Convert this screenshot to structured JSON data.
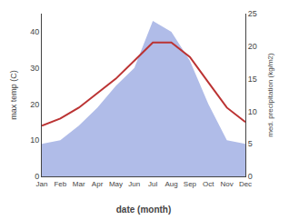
{
  "chart_data": {
    "type": "line",
    "categories": [
      "Jan",
      "Feb",
      "Mar",
      "Apr",
      "May",
      "Jun",
      "Jul",
      "Aug",
      "Sep",
      "Oct",
      "Nov",
      "Dec"
    ],
    "series": [
      {
        "type": "area",
        "color": "#b0bce8",
        "values": [
          9,
          10,
          14,
          19,
          25,
          30,
          43,
          40,
          32,
          20,
          10,
          9
        ]
      },
      {
        "type": "line",
        "color": "#bb3333",
        "values": [
          14,
          16,
          19,
          23,
          27,
          32,
          37,
          37,
          33,
          26,
          19,
          15
        ]
      }
    ],
    "xlabel": "date (month)",
    "ylabel": "max temp (C)",
    "y2label": "med. precipitation (kg/m2)",
    "ylim": [
      0,
      45
    ],
    "yticks": [
      0,
      10,
      20,
      30,
      40
    ],
    "y2lim": [
      0,
      25
    ],
    "y2ticks": [
      0,
      5,
      10,
      15,
      20,
      25
    ],
    "grid": false
  }
}
